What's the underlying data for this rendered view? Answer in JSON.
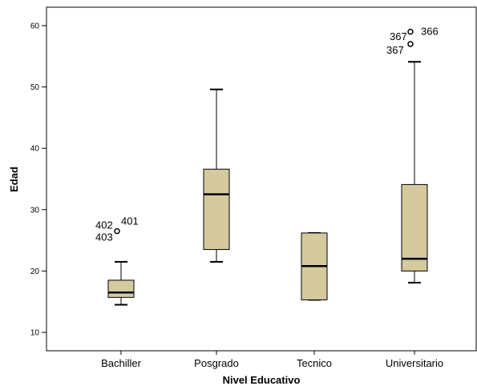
{
  "chart_data": {
    "type": "boxplot",
    "xlabel": "Nivel Educativo",
    "ylabel": "Edad",
    "ylim": [
      7,
      63
    ],
    "yticks": [
      "10",
      "20",
      "30",
      "40",
      "50",
      "60"
    ],
    "grid": false,
    "box_color": "#d4c99f",
    "categories": [
      "Bachiller",
      "Posgrado",
      "Tecnico",
      "Universitario"
    ],
    "boxes": [
      {
        "category": "Bachiller",
        "whisker_low": 14.5,
        "q1": 15.7,
        "median": 16.5,
        "q3": 18.5,
        "whisker_high": 21.5
      },
      {
        "category": "Posgrado",
        "whisker_low": 21.5,
        "q1": 23.5,
        "median": 32.5,
        "q3": 36.6,
        "whisker_high": 49.6
      },
      {
        "category": "Tecnico",
        "whisker_low": 15.3,
        "q1": 15.3,
        "median": 20.8,
        "q3": 26.2,
        "whisker_high": 26.2
      },
      {
        "category": "Universitario",
        "whisker_low": 18.1,
        "q1": 20.0,
        "median": 22.0,
        "q3": 34.1,
        "whisker_high": 54.1
      }
    ],
    "outliers": [
      {
        "category": "Bachiller",
        "value": 26.5,
        "labels": [
          "402",
          "401",
          "403"
        ]
      },
      {
        "category": "Universitario",
        "value": 59.0,
        "labels": [
          "366"
        ]
      },
      {
        "category": "Universitario",
        "value": 57.0,
        "labels": [
          "367",
          "367"
        ]
      }
    ]
  }
}
